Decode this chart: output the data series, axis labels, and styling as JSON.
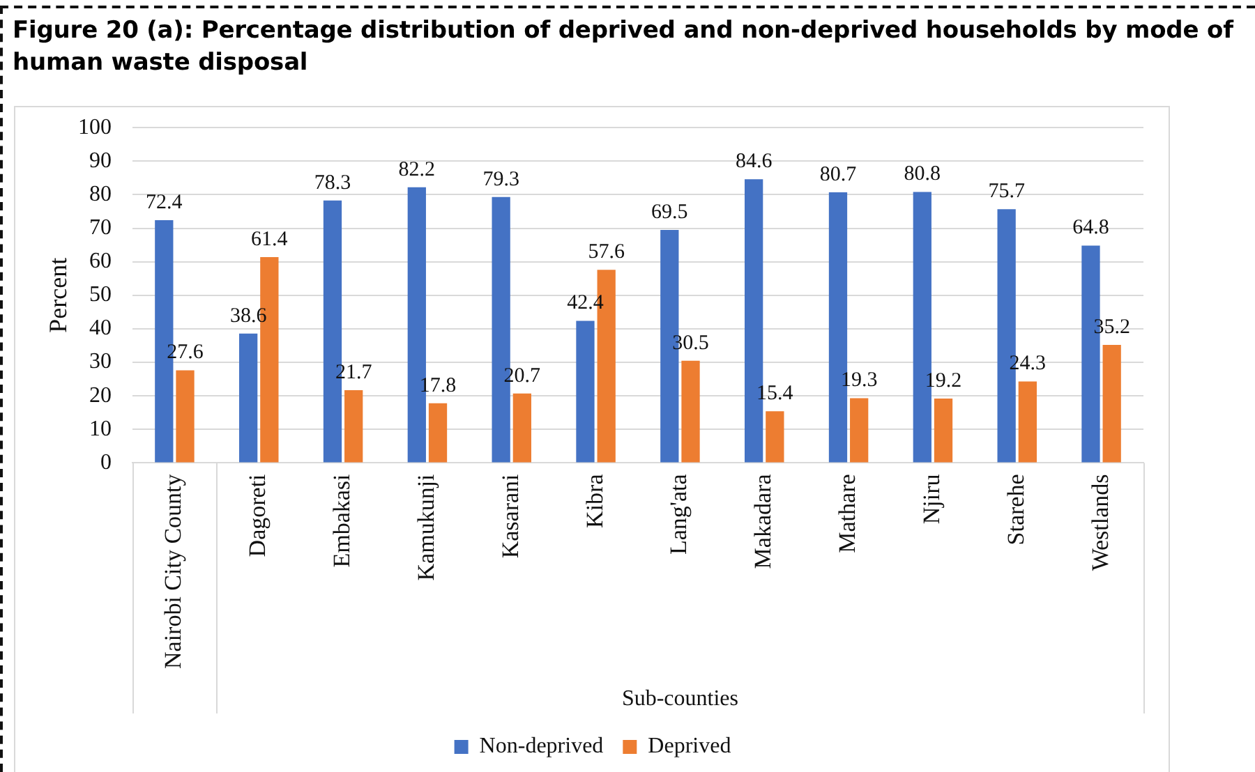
{
  "chart_data": {
    "type": "bar",
    "title": "Figure 20 (a): Percentage distribution of deprived and non-deprived households by mode of human waste disposal",
    "xlabel": "Sub-counties",
    "ylabel": "Percent",
    "categories": [
      "Nairobi City County",
      "Dagoreti",
      "Embakasi",
      "Kamukunji",
      "Kasarani",
      "Kibra",
      "Lang'ata",
      "Makadara",
      "Mathare",
      "Njiru",
      "Starehe",
      "Westlands"
    ],
    "series": [
      {
        "name": "Non-deprived",
        "color": "#4472c4",
        "values": [
          72.4,
          38.6,
          78.3,
          82.2,
          79.3,
          42.4,
          69.5,
          84.6,
          80.7,
          80.8,
          75.7,
          64.8
        ]
      },
      {
        "name": "Deprived",
        "color": "#ed7d31",
        "values": [
          27.6,
          61.4,
          21.7,
          17.8,
          20.7,
          57.6,
          30.5,
          15.4,
          19.3,
          19.2,
          24.3,
          35.2
        ]
      }
    ],
    "ylim": [
      0,
      100
    ],
    "yticks": [
      0,
      10,
      20,
      30,
      40,
      50,
      60,
      70,
      80,
      90,
      100
    ],
    "grid": "y",
    "legend": "bottom",
    "data_labels": true
  }
}
